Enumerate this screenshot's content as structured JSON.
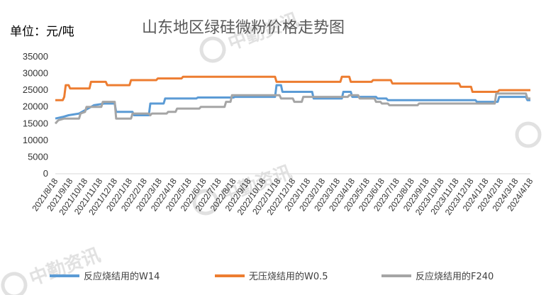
{
  "chart_data": {
    "type": "line",
    "title": "山东地区绿硅微粉价格走势图",
    "unit_label": "单位：元/吨",
    "ylim": [
      0,
      35000
    ],
    "yticks": [
      "0",
      "5000",
      "10000",
      "15000",
      "20000",
      "25000",
      "30000",
      "35000"
    ],
    "grid": false,
    "legend_position": "bottom",
    "categories": [
      "2021/8/18",
      "2021/9/18",
      "2021/10/18",
      "2021/11/18",
      "2021/12/18",
      "2022/1/18",
      "2022/2/18",
      "2022/3/18",
      "2022/4/18",
      "2022/5/18",
      "2022/6/18",
      "2022/7/18",
      "2022/8/18",
      "2022/9/18",
      "2022/10/18",
      "2022/11/18",
      "2022/12/18",
      "2023/1/18",
      "2023/2/18",
      "2023/3/18",
      "2023/4/18",
      "2023/5/18",
      "2023/6/18",
      "2023/7/18",
      "2023/8/18",
      "2023/9/18",
      "2023/10/18",
      "2023/11/18",
      "2023/12/18",
      "2024/1/18",
      "2024/2/18",
      "2024/3/18",
      "2024/4/18"
    ],
    "series": [
      {
        "name": "反应烧结用的W14",
        "color": "#5b9bd5",
        "points": [
          [
            0,
            16500
          ],
          [
            0.5,
            17000
          ],
          [
            0.9,
            17500
          ],
          [
            1.6,
            18000
          ],
          [
            2,
            19000
          ],
          [
            2.6,
            20500
          ],
          [
            3.3,
            21000
          ],
          [
            4,
            21000
          ],
          [
            4.1,
            18500
          ],
          [
            5.2,
            18500
          ],
          [
            5.3,
            17500
          ],
          [
            6.3,
            17500
          ],
          [
            6.4,
            21000
          ],
          [
            7.3,
            21000
          ],
          [
            7.4,
            22500
          ],
          [
            9.5,
            22500
          ],
          [
            9.6,
            22800
          ],
          [
            12,
            22800
          ],
          [
            12.1,
            23000
          ],
          [
            14.8,
            23000
          ],
          [
            14.9,
            26500
          ],
          [
            15.2,
            26500
          ],
          [
            15.3,
            24500
          ],
          [
            17.3,
            24500
          ],
          [
            17.4,
            22500
          ],
          [
            19.3,
            22500
          ],
          [
            19.4,
            24500
          ],
          [
            19.9,
            24500
          ],
          [
            20,
            23000
          ],
          [
            21.6,
            23000
          ],
          [
            21.7,
            22500
          ],
          [
            22.3,
            22500
          ],
          [
            22.4,
            22000
          ],
          [
            28.3,
            22000
          ],
          [
            28.4,
            21500
          ],
          [
            29.8,
            21500
          ],
          [
            29.9,
            23000
          ],
          [
            31.7,
            23000
          ],
          [
            31.8,
            22000
          ],
          [
            32,
            22000
          ]
        ]
      },
      {
        "name": "无压烧结用的W0.5",
        "color": "#ed7d31",
        "points": [
          [
            0,
            22000
          ],
          [
            0.5,
            22000
          ],
          [
            0.6,
            23000
          ],
          [
            0.7,
            26500
          ],
          [
            0.9,
            26500
          ],
          [
            1,
            25500
          ],
          [
            2.3,
            25500
          ],
          [
            2.4,
            27500
          ],
          [
            3.4,
            27500
          ],
          [
            3.5,
            26500
          ],
          [
            5,
            26500
          ],
          [
            5.1,
            28000
          ],
          [
            6.8,
            28000
          ],
          [
            6.9,
            28500
          ],
          [
            8.5,
            28500
          ],
          [
            8.6,
            29000
          ],
          [
            14.8,
            29000
          ],
          [
            14.9,
            27500
          ],
          [
            19.2,
            27500
          ],
          [
            19.3,
            29000
          ],
          [
            19.8,
            29000
          ],
          [
            19.9,
            27500
          ],
          [
            21.3,
            27500
          ],
          [
            21.4,
            28000
          ],
          [
            22.6,
            28000
          ],
          [
            22.7,
            27000
          ],
          [
            27.2,
            27000
          ],
          [
            27.3,
            26000
          ],
          [
            28,
            26000
          ],
          [
            28.1,
            24500
          ],
          [
            29.8,
            24500
          ],
          [
            29.9,
            25000
          ],
          [
            32,
            25000
          ]
        ]
      },
      {
        "name": "反应烧结用的F240",
        "color": "#a5a5a5",
        "points": [
          [
            0,
            15000
          ],
          [
            0.2,
            16000
          ],
          [
            0.6,
            16500
          ],
          [
            1.6,
            16500
          ],
          [
            1.7,
            18000
          ],
          [
            2,
            18500
          ],
          [
            2.1,
            20000
          ],
          [
            3.1,
            20000
          ],
          [
            3.2,
            21500
          ],
          [
            4,
            21500
          ],
          [
            4.1,
            16500
          ],
          [
            5.1,
            16500
          ],
          [
            5.2,
            18000
          ],
          [
            6.3,
            18000
          ],
          [
            6.4,
            17500
          ],
          [
            6.5,
            18000
          ],
          [
            7.5,
            18000
          ],
          [
            7.6,
            18500
          ],
          [
            8.1,
            18500
          ],
          [
            8.2,
            19500
          ],
          [
            9.7,
            19500
          ],
          [
            9.8,
            20000
          ],
          [
            11.4,
            20000
          ],
          [
            11.5,
            21500
          ],
          [
            11.8,
            21500
          ],
          [
            11.9,
            23500
          ],
          [
            15.1,
            23500
          ],
          [
            15.2,
            22500
          ],
          [
            16,
            22500
          ],
          [
            16.1,
            21500
          ],
          [
            16.6,
            21500
          ],
          [
            16.7,
            23000
          ],
          [
            19.7,
            23000
          ],
          [
            19.8,
            23500
          ],
          [
            20.4,
            23500
          ],
          [
            20.5,
            22500
          ],
          [
            21.5,
            22500
          ],
          [
            21.6,
            21500
          ],
          [
            21.9,
            21500
          ],
          [
            22,
            21000
          ],
          [
            22.4,
            21000
          ],
          [
            22.5,
            20500
          ],
          [
            24.4,
            20500
          ],
          [
            24.5,
            21000
          ],
          [
            29.6,
            21000
          ],
          [
            29.7,
            24000
          ],
          [
            31.7,
            24000
          ],
          [
            31.8,
            22500
          ],
          [
            32,
            22500
          ]
        ]
      }
    ]
  },
  "watermark": {
    "brand": "中勤资讯",
    "color": "#c8c8c8"
  }
}
